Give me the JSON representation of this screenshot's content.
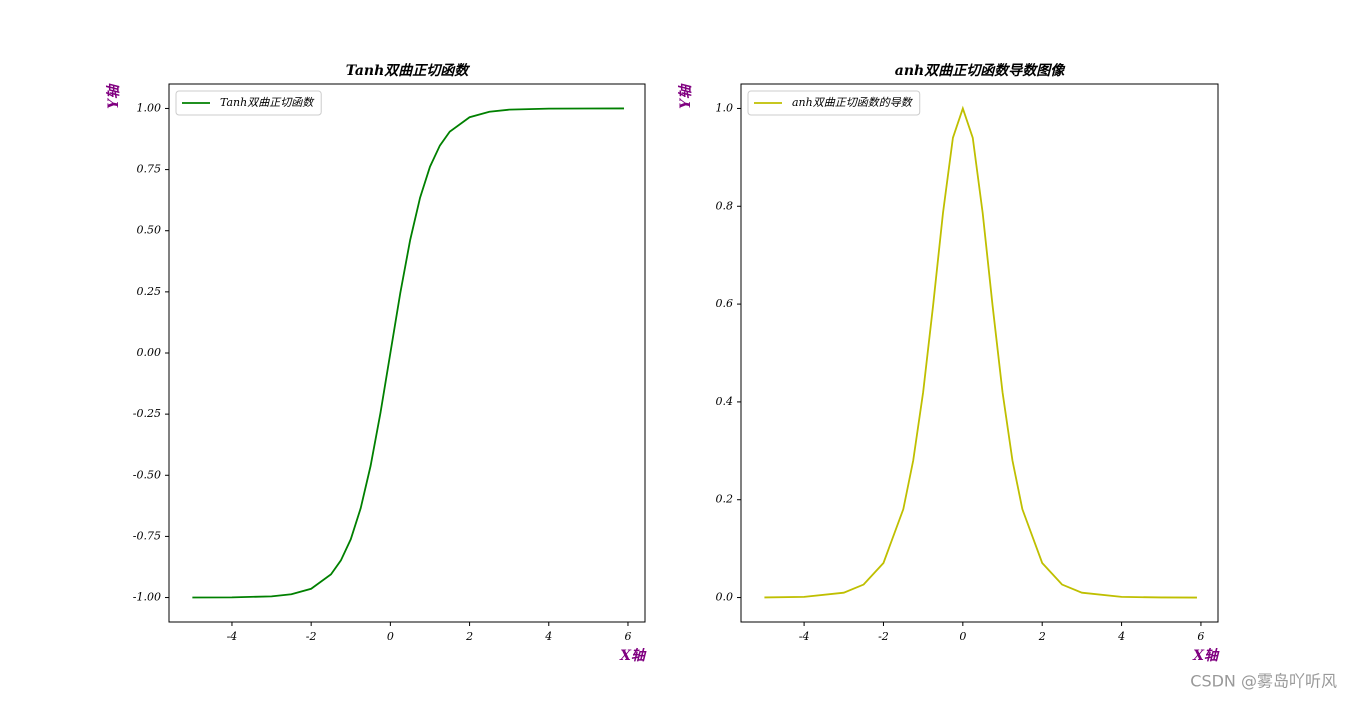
{
  "chart_data": [
    {
      "type": "line",
      "title": "Tanh双曲正切函数",
      "xlabel": "X轴",
      "ylabel": "Y轴",
      "legend": "upper left",
      "x": [
        -5,
        -4,
        -3,
        -2.5,
        -2,
        -1.5,
        -1.25,
        -1,
        -0.75,
        -0.5,
        -0.25,
        0,
        0.25,
        0.5,
        0.75,
        1,
        1.25,
        1.5,
        2,
        2.5,
        3,
        4,
        5,
        5.9
      ],
      "series": [
        {
          "name": "Tanh双曲正切函数",
          "color": "#008000",
          "values": [
            -0.9999,
            -0.9993,
            -0.9951,
            -0.9866,
            -0.964,
            -0.9051,
            -0.8483,
            -0.7616,
            -0.6351,
            -0.4621,
            -0.2449,
            0,
            0.2449,
            0.4621,
            0.6351,
            0.7616,
            0.8483,
            0.9051,
            0.964,
            0.9866,
            0.9951,
            0.9993,
            0.9999,
            1.0
          ]
        }
      ],
      "xlim": [
        -5.59,
        6.43
      ],
      "ylim": [
        -1.1,
        1.1
      ],
      "xticks": [
        -4,
        -2,
        0,
        2,
        4,
        6
      ],
      "yticks": [
        {
          "value": -1,
          "label": "-1.00"
        },
        {
          "value": -0.75,
          "label": "-0.75"
        },
        {
          "value": -0.5,
          "label": "-0.50"
        },
        {
          "value": -0.25,
          "label": "-0.25"
        },
        {
          "value": 0,
          "label": "0.00"
        },
        {
          "value": 0.25,
          "label": "0.25"
        },
        {
          "value": 0.5,
          "label": "0.50"
        },
        {
          "value": 0.75,
          "label": "0.75"
        },
        {
          "value": 1,
          "label": "1.00"
        }
      ]
    },
    {
      "type": "line",
      "title": "anh双曲正切函数导数图像",
      "xlabel": "X轴",
      "ylabel": "Y轴",
      "legend": "upper left",
      "x": [
        -5,
        -4,
        -3,
        -2.5,
        -2,
        -1.5,
        -1.25,
        -1,
        -0.75,
        -0.5,
        -0.25,
        0,
        0.25,
        0.5,
        0.75,
        1,
        1.25,
        1.5,
        2,
        2.5,
        3,
        4,
        5,
        5.9
      ],
      "series": [
        {
          "name": "anh双曲正切函数的导数",
          "color": "#bfbf00",
          "values": [
            0.0002,
            0.0013,
            0.0099,
            0.0266,
            0.0707,
            0.1807,
            0.2804,
            0.42,
            0.5966,
            0.7864,
            0.94,
            1,
            0.94,
            0.7864,
            0.5966,
            0.42,
            0.2804,
            0.1807,
            0.0707,
            0.0266,
            0.0099,
            0.0013,
            0.0002,
            0.0
          ]
        }
      ],
      "xlim": [
        -5.59,
        6.43
      ],
      "ylim": [
        -0.05,
        1.05
      ],
      "xticks": [
        -4,
        -2,
        0,
        2,
        4,
        6
      ],
      "yticks": [
        {
          "value": 0,
          "label": "0.0"
        },
        {
          "value": 0.2,
          "label": "0.2"
        },
        {
          "value": 0.4,
          "label": "0.4"
        },
        {
          "value": 0.6,
          "label": "0.6"
        },
        {
          "value": 0.8,
          "label": "0.8"
        },
        {
          "value": 1,
          "label": "1.0"
        }
      ]
    }
  ],
  "watermark": "CSDN @雾岛吖听风"
}
